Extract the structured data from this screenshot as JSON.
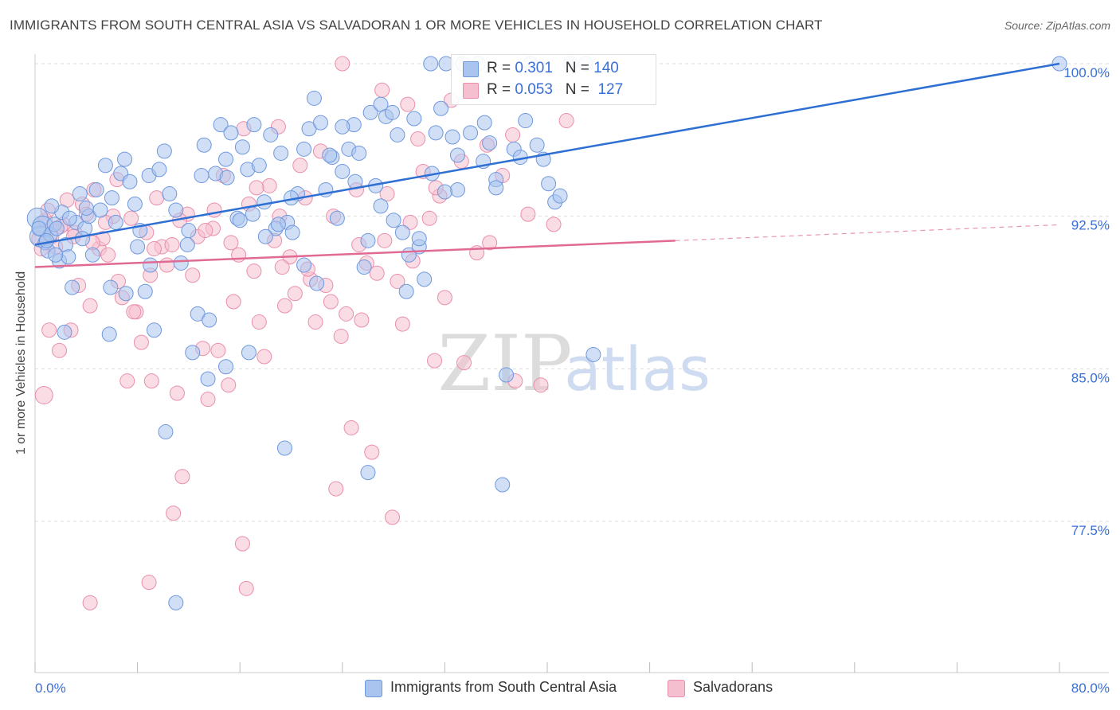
{
  "title": "IMMIGRANTS FROM SOUTH CENTRAL ASIA VS SALVADORAN 1 OR MORE VEHICLES IN HOUSEHOLD CORRELATION CHART",
  "source": "Source: ZipAtlas.com",
  "watermark": {
    "zip": "ZIP",
    "atlas": "atlas"
  },
  "colors": {
    "blue_fill": "#a9c4ee",
    "blue_stroke": "#6f98dd",
    "blue_line": "#2e6fd4",
    "pink_fill": "#f6bfd0",
    "pink_stroke": "#ea8fab",
    "pink_line": "#e06a93",
    "tick_label": "#3a6fd8",
    "grid": "#dddddd"
  },
  "legend_top": {
    "rows": [
      {
        "r_label": "R =",
        "r_value": "0.301",
        "n_label": "N =",
        "n_value": "140"
      },
      {
        "r_label": "R =",
        "r_value": "0.053",
        "n_label": "N =",
        "n_value": "127"
      }
    ]
  },
  "legend_bottom": [
    "Immigrants from South Central Asia",
    "Salvadorans"
  ],
  "chart_data": {
    "type": "scatter",
    "title": "IMMIGRANTS FROM SOUTH CENTRAL ASIA VS SALVADORAN 1 OR MORE VEHICLES IN HOUSEHOLD CORRELATION CHART",
    "xlabel": "",
    "ylabel": "1 or more Vehicles in Household",
    "xlim": [
      0,
      80
    ],
    "ylim": [
      72,
      100.5
    ],
    "x_tick_labels": [
      "0.0%",
      "80.0%"
    ],
    "y_ticks": [
      77.5,
      85.0,
      92.5,
      100.0
    ],
    "y_tick_labels": [
      "77.5%",
      "85.0%",
      "92.5%",
      "100.0%"
    ],
    "grid": true,
    "legend_position": "top-center",
    "series": [
      {
        "name": "Immigrants from South Central Asia",
        "R": 0.301,
        "N": 140,
        "trend": {
          "x": [
            0,
            80
          ],
          "y": [
            91.1,
            100.0
          ]
        },
        "points": [
          [
            0.2,
            92.4
          ],
          [
            0.4,
            91.5
          ],
          [
            0.6,
            92.0
          ],
          [
            0.8,
            91.2
          ],
          [
            1.0,
            90.8
          ],
          [
            1.2,
            91.6
          ],
          [
            1.5,
            92.1
          ],
          [
            1.7,
            91.9
          ],
          [
            1.9,
            90.3
          ],
          [
            2.1,
            92.7
          ],
          [
            2.4,
            91.1
          ],
          [
            2.6,
            90.5
          ],
          [
            2.9,
            89.0
          ],
          [
            3.2,
            92.2
          ],
          [
            3.5,
            93.6
          ],
          [
            3.9,
            91.9
          ],
          [
            4.2,
            92.5
          ],
          [
            4.5,
            90.6
          ],
          [
            4.8,
            93.8
          ],
          [
            5.1,
            92.8
          ],
          [
            5.5,
            95.0
          ],
          [
            5.9,
            89.0
          ],
          [
            6.3,
            92.2
          ],
          [
            6.7,
            94.6
          ],
          [
            7.0,
            95.3
          ],
          [
            7.4,
            94.2
          ],
          [
            7.8,
            93.1
          ],
          [
            8.2,
            91.8
          ],
          [
            8.6,
            88.8
          ],
          [
            8.9,
            94.5
          ],
          [
            9.3,
            86.9
          ],
          [
            9.7,
            94.8
          ],
          [
            10.1,
            95.7
          ],
          [
            10.5,
            93.6
          ],
          [
            11.0,
            92.8
          ],
          [
            11.4,
            90.2
          ],
          [
            11.9,
            91.1
          ],
          [
            12.3,
            85.8
          ],
          [
            12.7,
            87.7
          ],
          [
            13.2,
            96.0
          ],
          [
            13.6,
            87.4
          ],
          [
            14.1,
            94.6
          ],
          [
            14.5,
            97.0
          ],
          [
            14.9,
            95.3
          ],
          [
            15.3,
            96.6
          ],
          [
            15.8,
            92.4
          ],
          [
            16.2,
            95.9
          ],
          [
            16.6,
            94.8
          ],
          [
            17.1,
            97.0
          ],
          [
            17.5,
            95.0
          ],
          [
            17.9,
            93.2
          ],
          [
            18.4,
            96.5
          ],
          [
            18.8,
            91.9
          ],
          [
            19.2,
            95.6
          ],
          [
            19.7,
            92.2
          ],
          [
            20.1,
            91.7
          ],
          [
            20.5,
            93.6
          ],
          [
            21.0,
            95.8
          ],
          [
            21.4,
            96.8
          ],
          [
            21.8,
            98.3
          ],
          [
            22.3,
            97.1
          ],
          [
            22.7,
            93.8
          ],
          [
            23.2,
            95.4
          ],
          [
            23.6,
            92.4
          ],
          [
            24.0,
            94.7
          ],
          [
            24.5,
            95.8
          ],
          [
            24.9,
            97.0
          ],
          [
            25.3,
            95.6
          ],
          [
            25.7,
            90.0
          ],
          [
            26.2,
            97.6
          ],
          [
            26.6,
            94.0
          ],
          [
            27.0,
            98.0
          ],
          [
            27.4,
            97.4
          ],
          [
            27.9,
            97.6
          ],
          [
            28.3,
            96.5
          ],
          [
            28.7,
            91.7
          ],
          [
            29.2,
            90.6
          ],
          [
            29.6,
            97.3
          ],
          [
            30.0,
            91.0
          ],
          [
            30.4,
            89.4
          ],
          [
            30.9,
            100.0
          ],
          [
            31.3,
            96.6
          ],
          [
            31.7,
            97.8
          ],
          [
            32.1,
            100.0
          ],
          [
            32.6,
            96.4
          ],
          [
            33.0,
            93.8
          ],
          [
            33.4,
            100.0
          ],
          [
            34.0,
            98.6
          ],
          [
            34.6,
            100.0
          ],
          [
            35.1,
            97.1
          ],
          [
            35.5,
            96.1
          ],
          [
            36.0,
            94.3
          ],
          [
            36.8,
            84.7
          ],
          [
            37.4,
            95.8
          ],
          [
            37.9,
            95.4
          ],
          [
            38.3,
            97.2
          ],
          [
            38.7,
            100.0
          ],
          [
            39.2,
            96.0
          ],
          [
            39.7,
            95.3
          ],
          [
            40.1,
            94.1
          ],
          [
            40.6,
            93.2
          ],
          [
            41.0,
            93.5
          ],
          [
            41.8,
            100.0
          ],
          [
            43.0,
            100.0
          ],
          [
            43.6,
            85.7
          ],
          [
            36.5,
            79.3
          ],
          [
            26.0,
            79.9
          ],
          [
            19.5,
            81.1
          ],
          [
            10.2,
            81.9
          ],
          [
            11.0,
            73.5
          ],
          [
            14.9,
            85.1
          ],
          [
            16.7,
            85.8
          ],
          [
            13.5,
            84.5
          ],
          [
            7.1,
            88.7
          ],
          [
            5.8,
            86.7
          ],
          [
            3.7,
            91.4
          ],
          [
            2.3,
            86.8
          ],
          [
            1.6,
            90.6
          ],
          [
            0.9,
            91.3
          ],
          [
            0.3,
            91.9
          ],
          [
            1.3,
            93.0
          ],
          [
            2.7,
            92.4
          ],
          [
            4.0,
            92.9
          ],
          [
            6.0,
            93.4
          ],
          [
            8.0,
            91.0
          ],
          [
            9.0,
            90.1
          ],
          [
            12.0,
            91.8
          ],
          [
            13.0,
            94.5
          ],
          [
            15.0,
            94.4
          ],
          [
            16.0,
            92.3
          ],
          [
            17.0,
            92.6
          ],
          [
            18.0,
            91.5
          ],
          [
            19.0,
            92.1
          ],
          [
            20.0,
            93.4
          ],
          [
            21.0,
            90.1
          ],
          [
            22.0,
            89.2
          ],
          [
            23.0,
            95.5
          ],
          [
            24.0,
            96.9
          ],
          [
            25.0,
            94.2
          ],
          [
            26.0,
            91.3
          ],
          [
            27.0,
            93.0
          ],
          [
            28.0,
            92.3
          ],
          [
            29.0,
            88.8
          ],
          [
            30.0,
            91.4
          ],
          [
            31.0,
            94.6
          ],
          [
            32.0,
            93.7
          ],
          [
            33.0,
            95.5
          ],
          [
            34.0,
            96.6
          ],
          [
            35.0,
            95.2
          ],
          [
            36.0,
            93.9
          ],
          [
            80.0,
            100.0
          ]
        ]
      },
      {
        "name": "Salvadorans",
        "R": 0.053,
        "N": 127,
        "trend": {
          "x": [
            0,
            50
          ],
          "y": [
            90.0,
            91.3
          ]
        },
        "points": [
          [
            0.3,
            91.4
          ],
          [
            0.5,
            90.9
          ],
          [
            0.8,
            92.3
          ],
          [
            1.0,
            92.8
          ],
          [
            1.3,
            91.5
          ],
          [
            1.6,
            91.0
          ],
          [
            1.9,
            85.9
          ],
          [
            2.2,
            92.1
          ],
          [
            2.5,
            93.3
          ],
          [
            2.8,
            86.9
          ],
          [
            3.1,
            91.7
          ],
          [
            3.4,
            89.1
          ],
          [
            3.7,
            93.1
          ],
          [
            4.0,
            92.6
          ],
          [
            4.3,
            88.1
          ],
          [
            4.6,
            93.8
          ],
          [
            5.0,
            90.9
          ],
          [
            5.3,
            91.4
          ],
          [
            5.7,
            90.6
          ],
          [
            6.1,
            92.5
          ],
          [
            6.4,
            94.3
          ],
          [
            6.8,
            88.5
          ],
          [
            7.2,
            84.4
          ],
          [
            7.5,
            92.4
          ],
          [
            7.9,
            87.8
          ],
          [
            8.3,
            86.3
          ],
          [
            8.7,
            91.7
          ],
          [
            9.1,
            84.4
          ],
          [
            9.5,
            93.4
          ],
          [
            9.9,
            91.0
          ],
          [
            10.3,
            90.1
          ],
          [
            10.7,
            91.1
          ],
          [
            11.1,
            83.8
          ],
          [
            11.5,
            79.7
          ],
          [
            11.9,
            92.6
          ],
          [
            12.3,
            89.6
          ],
          [
            12.7,
            91.5
          ],
          [
            13.1,
            86.0
          ],
          [
            13.5,
            83.5
          ],
          [
            13.9,
            91.9
          ],
          [
            14.3,
            85.9
          ],
          [
            14.7,
            94.5
          ],
          [
            15.1,
            84.2
          ],
          [
            15.5,
            88.3
          ],
          [
            15.9,
            90.6
          ],
          [
            16.3,
            96.8
          ],
          [
            16.7,
            93.1
          ],
          [
            17.1,
            89.8
          ],
          [
            17.5,
            87.3
          ],
          [
            17.9,
            85.6
          ],
          [
            18.3,
            94.0
          ],
          [
            18.7,
            91.3
          ],
          [
            19.1,
            92.5
          ],
          [
            19.5,
            88.1
          ],
          [
            19.9,
            90.5
          ],
          [
            20.3,
            88.7
          ],
          [
            20.7,
            95.0
          ],
          [
            21.1,
            93.4
          ],
          [
            21.5,
            89.4
          ],
          [
            21.9,
            87.3
          ],
          [
            22.3,
            95.7
          ],
          [
            22.7,
            89.1
          ],
          [
            23.1,
            88.3
          ],
          [
            23.5,
            79.1
          ],
          [
            23.9,
            86.6
          ],
          [
            24.3,
            87.7
          ],
          [
            24.7,
            82.1
          ],
          [
            25.1,
            93.8
          ],
          [
            25.5,
            87.4
          ],
          [
            25.9,
            90.2
          ],
          [
            26.3,
            80.9
          ],
          [
            26.7,
            89.7
          ],
          [
            27.1,
            98.7
          ],
          [
            27.5,
            93.6
          ],
          [
            27.9,
            77.7
          ],
          [
            28.3,
            89.3
          ],
          [
            28.7,
            87.2
          ],
          [
            29.1,
            98.0
          ],
          [
            29.5,
            90.3
          ],
          [
            29.9,
            96.3
          ],
          [
            30.3,
            94.7
          ],
          [
            30.8,
            92.4
          ],
          [
            31.2,
            85.4
          ],
          [
            31.6,
            93.5
          ],
          [
            32.0,
            88.5
          ],
          [
            32.5,
            98.2
          ],
          [
            33.5,
            85.3
          ],
          [
            34.5,
            90.7
          ],
          [
            35.5,
            91.2
          ],
          [
            36.5,
            94.5
          ],
          [
            37.5,
            84.4
          ],
          [
            38.5,
            92.6
          ],
          [
            39.5,
            84.2
          ],
          [
            40.5,
            92.1
          ],
          [
            41.5,
            97.2
          ],
          [
            0.7,
            83.7
          ],
          [
            1.1,
            86.9
          ],
          [
            2.0,
            92.0
          ],
          [
            3.0,
            91.5
          ],
          [
            4.5,
            91.2
          ],
          [
            5.5,
            92.2
          ],
          [
            6.5,
            89.3
          ],
          [
            7.7,
            87.8
          ],
          [
            9.3,
            90.9
          ],
          [
            11.3,
            92.3
          ],
          [
            13.3,
            91.8
          ],
          [
            15.3,
            91.2
          ],
          [
            17.3,
            93.9
          ],
          [
            19.3,
            90.0
          ],
          [
            21.3,
            89.9
          ],
          [
            23.3,
            92.5
          ],
          [
            25.3,
            91.1
          ],
          [
            27.3,
            91.3
          ],
          [
            29.3,
            92.2
          ],
          [
            31.3,
            93.9
          ],
          [
            33.3,
            95.2
          ],
          [
            35.3,
            96.0
          ],
          [
            37.3,
            96.5
          ],
          [
            24.0,
            100.0
          ],
          [
            19.0,
            96.9
          ],
          [
            14.0,
            92.8
          ],
          [
            9.0,
            89.6
          ],
          [
            10.8,
            77.9
          ],
          [
            16.2,
            76.4
          ],
          [
            8.9,
            74.5
          ],
          [
            16.5,
            74.2
          ],
          [
            4.3,
            73.5
          ]
        ]
      }
    ]
  }
}
